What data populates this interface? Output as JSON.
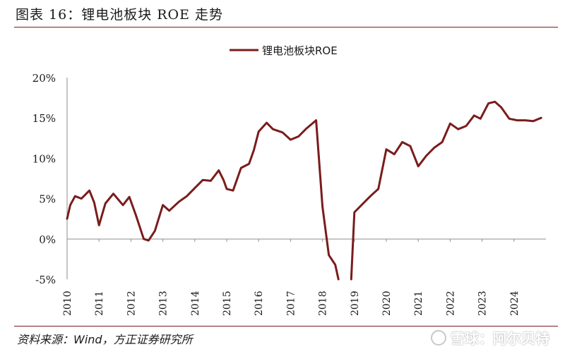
{
  "header": {
    "title": "图表 16：锂电池板块 ROE 走势"
  },
  "footer": {
    "source": "资料来源：Wind，方正证券研究所"
  },
  "watermark": {
    "text": "雪球：阿尔贝特"
  },
  "colors": {
    "line": "#7a1c1c",
    "axis": "#8c8c8c",
    "text": "#1a1a1a"
  },
  "chart_data": {
    "type": "line",
    "title": "",
    "xlabel": "",
    "ylabel": "",
    "ylim": [
      -5,
      20
    ],
    "yticks": [
      "20%",
      "15%",
      "10%",
      "5%",
      "0%",
      "-5%"
    ],
    "xticks": [
      "2010",
      "2011",
      "2012",
      "2013",
      "2014",
      "2015",
      "2016",
      "2017",
      "2018",
      "2019",
      "2020",
      "2021",
      "2022",
      "2023",
      "2024"
    ],
    "grid": false,
    "legend_position": "top-center",
    "series": [
      {
        "name": "锂电池板块ROE",
        "color": "#7a1c1c",
        "points": [
          [
            2010.0,
            2.5
          ],
          [
            2010.1,
            4.2
          ],
          [
            2010.25,
            5.3
          ],
          [
            2010.45,
            5.0
          ],
          [
            2010.7,
            6.0
          ],
          [
            2010.85,
            4.5
          ],
          [
            2011.0,
            1.7
          ],
          [
            2011.2,
            4.4
          ],
          [
            2011.45,
            5.6
          ],
          [
            2011.75,
            4.2
          ],
          [
            2011.95,
            5.2
          ],
          [
            2012.15,
            3.0
          ],
          [
            2012.4,
            0.0
          ],
          [
            2012.55,
            -0.2
          ],
          [
            2012.75,
            1.0
          ],
          [
            2013.0,
            4.2
          ],
          [
            2013.2,
            3.5
          ],
          [
            2013.5,
            4.6
          ],
          [
            2013.75,
            5.3
          ],
          [
            2014.0,
            6.3
          ],
          [
            2014.25,
            7.3
          ],
          [
            2014.5,
            7.2
          ],
          [
            2014.75,
            8.5
          ],
          [
            2014.9,
            7.3
          ],
          [
            2015.0,
            6.2
          ],
          [
            2015.2,
            6.0
          ],
          [
            2015.45,
            8.8
          ],
          [
            2015.7,
            9.3
          ],
          [
            2015.85,
            11.0
          ],
          [
            2016.0,
            13.3
          ],
          [
            2016.25,
            14.4
          ],
          [
            2016.45,
            13.6
          ],
          [
            2016.75,
            13.2
          ],
          [
            2017.0,
            12.3
          ],
          [
            2017.25,
            12.7
          ],
          [
            2017.5,
            13.7
          ],
          [
            2017.8,
            14.7
          ],
          [
            2018.0,
            4.0
          ],
          [
            2018.2,
            -2.0
          ],
          [
            2018.4,
            -3.2
          ],
          [
            2018.5,
            -5.0
          ],
          [
            null,
            null
          ],
          [
            2018.9,
            -5.0
          ],
          [
            2019.0,
            3.3
          ],
          [
            2019.25,
            4.3
          ],
          [
            2019.5,
            5.3
          ],
          [
            2019.75,
            6.2
          ],
          [
            2020.0,
            11.1
          ],
          [
            2020.25,
            10.5
          ],
          [
            2020.5,
            12.0
          ],
          [
            2020.75,
            11.5
          ],
          [
            2021.0,
            9.0
          ],
          [
            2021.25,
            10.3
          ],
          [
            2021.5,
            11.3
          ],
          [
            2021.75,
            12.0
          ],
          [
            2022.0,
            14.3
          ],
          [
            2022.25,
            13.6
          ],
          [
            2022.5,
            14.0
          ],
          [
            2022.75,
            15.3
          ],
          [
            2022.95,
            14.9
          ],
          [
            2023.2,
            16.8
          ],
          [
            2023.4,
            17.0
          ],
          [
            2023.6,
            16.3
          ],
          [
            2023.85,
            14.9
          ],
          [
            2024.1,
            14.7
          ],
          [
            2024.35,
            14.7
          ],
          [
            2024.6,
            14.6
          ],
          [
            2024.85,
            15.0
          ]
        ]
      }
    ]
  }
}
